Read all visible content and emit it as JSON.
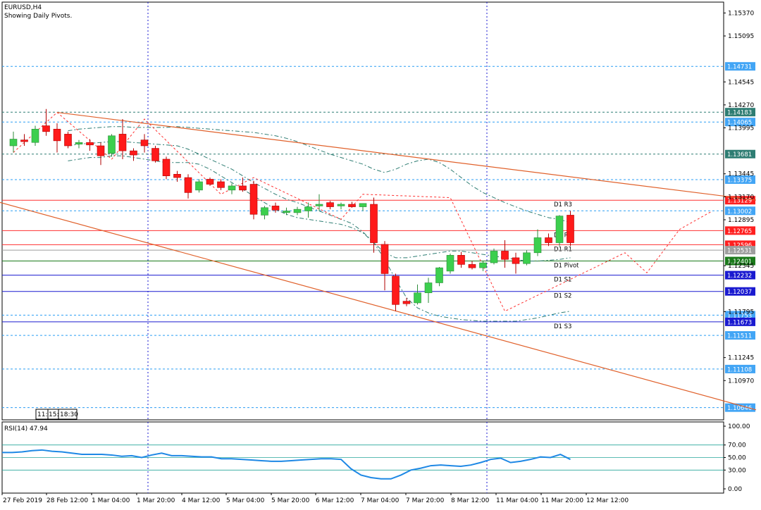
{
  "chart_data": {
    "type": "candlestick",
    "symbol_label": "EURUSD,H4",
    "subtitle": "Showing Daily Pivots.",
    "time_labels": [
      "27 Feb 2019",
      "28 Feb 12:00",
      "1 Mar 04:00",
      "1 Mar 20:00",
      "4 Mar 12:00",
      "5 Mar 04:00",
      "5 Mar 20:00",
      "6 Mar 12:00",
      "7 Mar 04:00",
      "7 Mar 20:00",
      "8 Mar 12:00",
      "11 Mar 04:00",
      "11 Mar 20:00",
      "12 Mar 12:00"
    ],
    "price_ticks": [
      "1.15370",
      "1.15095",
      "1.14545",
      "1.14270",
      "1.13995",
      "1.13445",
      "1.13170",
      "1.12895",
      "1.12345",
      "1.11795",
      "1.11245",
      "1.10970"
    ],
    "ylim": [
      1.105,
      1.155
    ],
    "candles": [
      {
        "o": 1.1378,
        "h": 1.1395,
        "l": 1.137,
        "c": 1.1386
      },
      {
        "o": 1.1385,
        "h": 1.1392,
        "l": 1.1378,
        "c": 1.1383
      },
      {
        "o": 1.1382,
        "h": 1.1402,
        "l": 1.1378,
        "c": 1.1398
      },
      {
        "o": 1.1402,
        "h": 1.1422,
        "l": 1.139,
        "c": 1.1395
      },
      {
        "o": 1.1398,
        "h": 1.1405,
        "l": 1.137,
        "c": 1.1384
      },
      {
        "o": 1.1392,
        "h": 1.1395,
        "l": 1.1375,
        "c": 1.1378
      },
      {
        "o": 1.138,
        "h": 1.1385,
        "l": 1.1375,
        "c": 1.1382
      },
      {
        "o": 1.1382,
        "h": 1.1386,
        "l": 1.1372,
        "c": 1.1379
      },
      {
        "o": 1.1378,
        "h": 1.1382,
        "l": 1.1355,
        "c": 1.1366
      },
      {
        "o": 1.1369,
        "h": 1.1392,
        "l": 1.1365,
        "c": 1.139
      },
      {
        "o": 1.1392,
        "h": 1.141,
        "l": 1.1362,
        "c": 1.1372
      },
      {
        "o": 1.1372,
        "h": 1.1375,
        "l": 1.136,
        "c": 1.1367
      },
      {
        "o": 1.1385,
        "h": 1.1392,
        "l": 1.137,
        "c": 1.1378
      },
      {
        "o": 1.1375,
        "h": 1.1378,
        "l": 1.1358,
        "c": 1.136
      },
      {
        "o": 1.1362,
        "h": 1.1365,
        "l": 1.1338,
        "c": 1.1342
      },
      {
        "o": 1.1344,
        "h": 1.1348,
        "l": 1.1335,
        "c": 1.134
      },
      {
        "o": 1.134,
        "h": 1.1344,
        "l": 1.1315,
        "c": 1.1322
      },
      {
        "o": 1.1325,
        "h": 1.1338,
        "l": 1.1322,
        "c": 1.1335
      },
      {
        "o": 1.1338,
        "h": 1.134,
        "l": 1.133,
        "c": 1.1332
      },
      {
        "o": 1.1335,
        "h": 1.1338,
        "l": 1.1325,
        "c": 1.1328
      },
      {
        "o": 1.1325,
        "h": 1.1333,
        "l": 1.132,
        "c": 1.133
      },
      {
        "o": 1.133,
        "h": 1.134,
        "l": 1.1323,
        "c": 1.1325
      },
      {
        "o": 1.1332,
        "h": 1.1336,
        "l": 1.129,
        "c": 1.1296
      },
      {
        "o": 1.1295,
        "h": 1.1306,
        "l": 1.129,
        "c": 1.1304
      },
      {
        "o": 1.1306,
        "h": 1.131,
        "l": 1.1298,
        "c": 1.1301
      },
      {
        "o": 1.1298,
        "h": 1.1304,
        "l": 1.1295,
        "c": 1.13
      },
      {
        "o": 1.1298,
        "h": 1.1305,
        "l": 1.1295,
        "c": 1.1302
      },
      {
        "o": 1.13,
        "h": 1.131,
        "l": 1.1292,
        "c": 1.1305
      },
      {
        "o": 1.1306,
        "h": 1.132,
        "l": 1.13,
        "c": 1.1308
      },
      {
        "o": 1.131,
        "h": 1.1312,
        "l": 1.1302,
        "c": 1.1305
      },
      {
        "o": 1.1306,
        "h": 1.131,
        "l": 1.1302,
        "c": 1.1308
      },
      {
        "o": 1.1308,
        "h": 1.1311,
        "l": 1.1304,
        "c": 1.1305
      },
      {
        "o": 1.1305,
        "h": 1.1309,
        "l": 1.13,
        "c": 1.1309
      },
      {
        "o": 1.1308,
        "h": 1.1316,
        "l": 1.125,
        "c": 1.1262
      },
      {
        "o": 1.126,
        "h": 1.1264,
        "l": 1.1205,
        "c": 1.1225
      },
      {
        "o": 1.1222,
        "h": 1.1225,
        "l": 1.118,
        "c": 1.1188
      },
      {
        "o": 1.1192,
        "h": 1.1196,
        "l": 1.1186,
        "c": 1.1189
      },
      {
        "o": 1.119,
        "h": 1.1212,
        "l": 1.1188,
        "c": 1.1202
      },
      {
        "o": 1.1202,
        "h": 1.122,
        "l": 1.119,
        "c": 1.1214
      },
      {
        "o": 1.1214,
        "h": 1.1233,
        "l": 1.121,
        "c": 1.1232
      },
      {
        "o": 1.1228,
        "h": 1.1249,
        "l": 1.1225,
        "c": 1.1247
      },
      {
        "o": 1.1247,
        "h": 1.1251,
        "l": 1.1232,
        "c": 1.1236
      },
      {
        "o": 1.1236,
        "h": 1.124,
        "l": 1.123,
        "c": 1.1232
      },
      {
        "o": 1.1232,
        "h": 1.124,
        "l": 1.1228,
        "c": 1.1238
      },
      {
        "o": 1.1238,
        "h": 1.1255,
        "l": 1.1236,
        "c": 1.1252
      },
      {
        "o": 1.1252,
        "h": 1.1265,
        "l": 1.1232,
        "c": 1.1242
      },
      {
        "o": 1.1244,
        "h": 1.125,
        "l": 1.1225,
        "c": 1.1237
      },
      {
        "o": 1.1237,
        "h": 1.1253,
        "l": 1.1235,
        "c": 1.125
      },
      {
        "o": 1.125,
        "h": 1.1278,
        "l": 1.1246,
        "c": 1.1268
      },
      {
        "o": 1.1268,
        "h": 1.1273,
        "l": 1.1258,
        "c": 1.1262
      },
      {
        "o": 1.1262,
        "h": 1.1295,
        "l": 1.1258,
        "c": 1.1294
      },
      {
        "o": 1.1295,
        "h": 1.13,
        "l": 1.1258,
        "c": 1.1262
      }
    ],
    "horizontal_levels": [
      {
        "price": 1.14731,
        "label": "1.14731",
        "style": "dotted",
        "color": "#2a9df4",
        "tag_bg": "#42a5f5"
      },
      {
        "price": 1.14183,
        "label": "1.14183",
        "style": "dotted",
        "color": "#2e7d73",
        "tag_bg": "#2e7d73"
      },
      {
        "price": 1.14065,
        "label": "1.14065",
        "style": "dotted",
        "color": "#2a9df4",
        "tag_bg": "#42a5f5"
      },
      {
        "price": 1.13681,
        "label": "1.13681",
        "style": "dotted",
        "color": "#2e7d73",
        "tag_bg": "#2e7d73"
      },
      {
        "price": 1.13375,
        "label": "1.13375",
        "style": "dotted",
        "color": "#2a9df4",
        "tag_bg": "#42a5f5"
      },
      {
        "price": 1.13129,
        "label": "1.13129",
        "style": "solid",
        "color": "#ff3030",
        "tag_bg": "#ff2020",
        "name": "D1 R3"
      },
      {
        "price": 1.13002,
        "label": "1.13002",
        "style": "dotted",
        "color": "#2a9df4",
        "tag_bg": "#42a5f5"
      },
      {
        "price": 1.12765,
        "label": "1.12765",
        "style": "solid",
        "color": "#ff3030",
        "tag_bg": "#ff2020",
        "name": "D1 R2"
      },
      {
        "price": 1.12596,
        "label": "1.12596",
        "style": "solid",
        "color": "#ff3030",
        "tag_bg": "#ff2020",
        "name": "D1 R1"
      },
      {
        "price": 1.12531,
        "label": "1.12531",
        "style": "solid",
        "color": "#9e9e9e",
        "tag_bg": "#9e9e9e"
      },
      {
        "price": 1.12401,
        "label": "1.12401",
        "style": "solid",
        "color": "#1b7a1b",
        "tag_bg": "#1b7a1b",
        "name": "D1 Pivot"
      },
      {
        "price": 1.12232,
        "label": "1.12232",
        "style": "solid",
        "color": "#1a1ad0",
        "tag_bg": "#1a1ad0",
        "name": "D1 S1"
      },
      {
        "price": 1.12037,
        "label": "1.12037",
        "style": "solid",
        "color": "#1a1ad0",
        "tag_bg": "#1a1ad0",
        "name": "D1 S2"
      },
      {
        "price": 1.11753,
        "label": "1.11753",
        "style": "dotted",
        "color": "#2a9df4",
        "tag_bg": "#42a5f5"
      },
      {
        "price": 1.11673,
        "label": "1.11673",
        "style": "solid",
        "color": "#1a1ad0",
        "tag_bg": "#1a1ad0",
        "name": "D1 S3"
      },
      {
        "price": 1.11511,
        "label": "1.11511",
        "style": "dotted",
        "color": "#2a9df4",
        "tag_bg": "#42a5f5"
      },
      {
        "price": 1.11108,
        "label": "1.11108",
        "style": "dotted",
        "color": "#2a9df4",
        "tag_bg": "#42a5f5"
      },
      {
        "price": 1.10646,
        "label": "1.10646",
        "style": "dotted",
        "color": "#2a9df4",
        "tag_bg": "#42a5f5"
      }
    ],
    "trendlines": [
      {
        "from": {
          "bar": 4,
          "price": 1.1418
        },
        "to": {
          "bar": 68,
          "price": 1.1313
        },
        "color": "#e0602a"
      },
      {
        "from": {
          "bar": -2,
          "price": 1.1313
        },
        "to": {
          "bar": 68,
          "price": 1.1062
        },
        "color": "#e0602a"
      }
    ],
    "bollinger": {
      "upper": [
        1.1396,
        1.1398,
        1.1399,
        1.14,
        1.1401,
        1.1401,
        1.14,
        1.14,
        1.14,
        1.14,
        1.1401,
        1.14,
        1.1399,
        1.1398,
        1.1397,
        1.1396,
        1.1395,
        1.1394,
        1.1392,
        1.139,
        1.1387,
        1.1383,
        1.1378,
        1.1373,
        1.1368,
        1.1364,
        1.136,
        1.1356,
        1.135,
        1.1346,
        1.135,
        1.1356,
        1.136,
        1.1362,
        1.1358,
        1.135,
        1.134,
        1.133,
        1.1322,
        1.1316,
        1.131,
        1.1305,
        1.13,
        1.1296,
        1.1292,
        1.129,
        1.1286
      ],
      "lower": [
        1.136,
        1.1362,
        1.1364,
        1.1364,
        1.1366,
        1.1366,
        1.1364,
        1.1362,
        1.136,
        1.1358,
        1.1358,
        1.1358,
        1.1356,
        1.135,
        1.1342,
        1.1334,
        1.1326,
        1.1318,
        1.131,
        1.1302,
        1.1296,
        1.1292,
        1.129,
        1.1288,
        1.1286,
        1.1284,
        1.128,
        1.1274,
        1.1262,
        1.1242,
        1.1218,
        1.1196,
        1.1184,
        1.1178,
        1.1174,
        1.1172,
        1.117,
        1.1169,
        1.1168,
        1.1168,
        1.1168,
        1.1168,
        1.117,
        1.1172,
        1.1175,
        1.1178,
        1.118
      ],
      "middle": [
        1.1378,
        1.138,
        1.1381,
        1.1382,
        1.1383,
        1.1383,
        1.1382,
        1.1381,
        1.138,
        1.1379,
        1.1378,
        1.1374,
        1.1368,
        1.1362,
        1.1356,
        1.135,
        1.1342,
        1.1334,
        1.1327,
        1.132,
        1.1314,
        1.131,
        1.1305,
        1.13,
        1.1295,
        1.129,
        1.1285,
        1.1275,
        1.1262,
        1.125,
        1.1244,
        1.1244,
        1.1246,
        1.1248,
        1.125,
        1.1252,
        1.1252,
        1.125,
        1.1248,
        1.1246,
        1.1244,
        1.1242,
        1.124,
        1.124,
        1.1241,
        1.1242,
        1.1244
      ]
    },
    "zigzag": [
      {
        "bar": 0,
        "price": 1.137
      },
      {
        "bar": 4,
        "price": 1.1418
      },
      {
        "bar": 9,
        "price": 1.1362
      },
      {
        "bar": 12,
        "price": 1.141
      },
      {
        "bar": 19,
        "price": 1.132
      },
      {
        "bar": 22,
        "price": 1.134
      },
      {
        "bar": 30,
        "price": 1.129
      },
      {
        "bar": 32,
        "price": 1.132
      },
      {
        "bar": 40,
        "price": 1.1316
      },
      {
        "bar": 45,
        "price": 1.118
      },
      {
        "bar": 56,
        "price": 1.125
      },
      {
        "bar": 58,
        "price": 1.1226
      },
      {
        "bar": 61,
        "price": 1.1278
      },
      {
        "bar": 64,
        "price": 1.13
      }
    ],
    "time_box": {
      "parts": [
        "11:",
        "15:",
        "18:30"
      ]
    },
    "rsi": {
      "label": "RSI(14) 47.94",
      "levels": [
        "100.00",
        "70.00",
        "50.00",
        "30.00",
        "0.00"
      ],
      "ylim": [
        0,
        100
      ],
      "guide_lines": [
        70,
        50,
        30
      ],
      "values": [
        58,
        58,
        59,
        61,
        62,
        60,
        59,
        57,
        55,
        55,
        55,
        54,
        52,
        53,
        50,
        54,
        57,
        53,
        53,
        52,
        51,
        51,
        48,
        48,
        47,
        46,
        45,
        44,
        44,
        45,
        46,
        47,
        48,
        48,
        47,
        32,
        22,
        18,
        16,
        16,
        22,
        30,
        33,
        37,
        38,
        37,
        36,
        38,
        42,
        47,
        49,
        42,
        44,
        47,
        51,
        50,
        55,
        47
      ]
    }
  }
}
